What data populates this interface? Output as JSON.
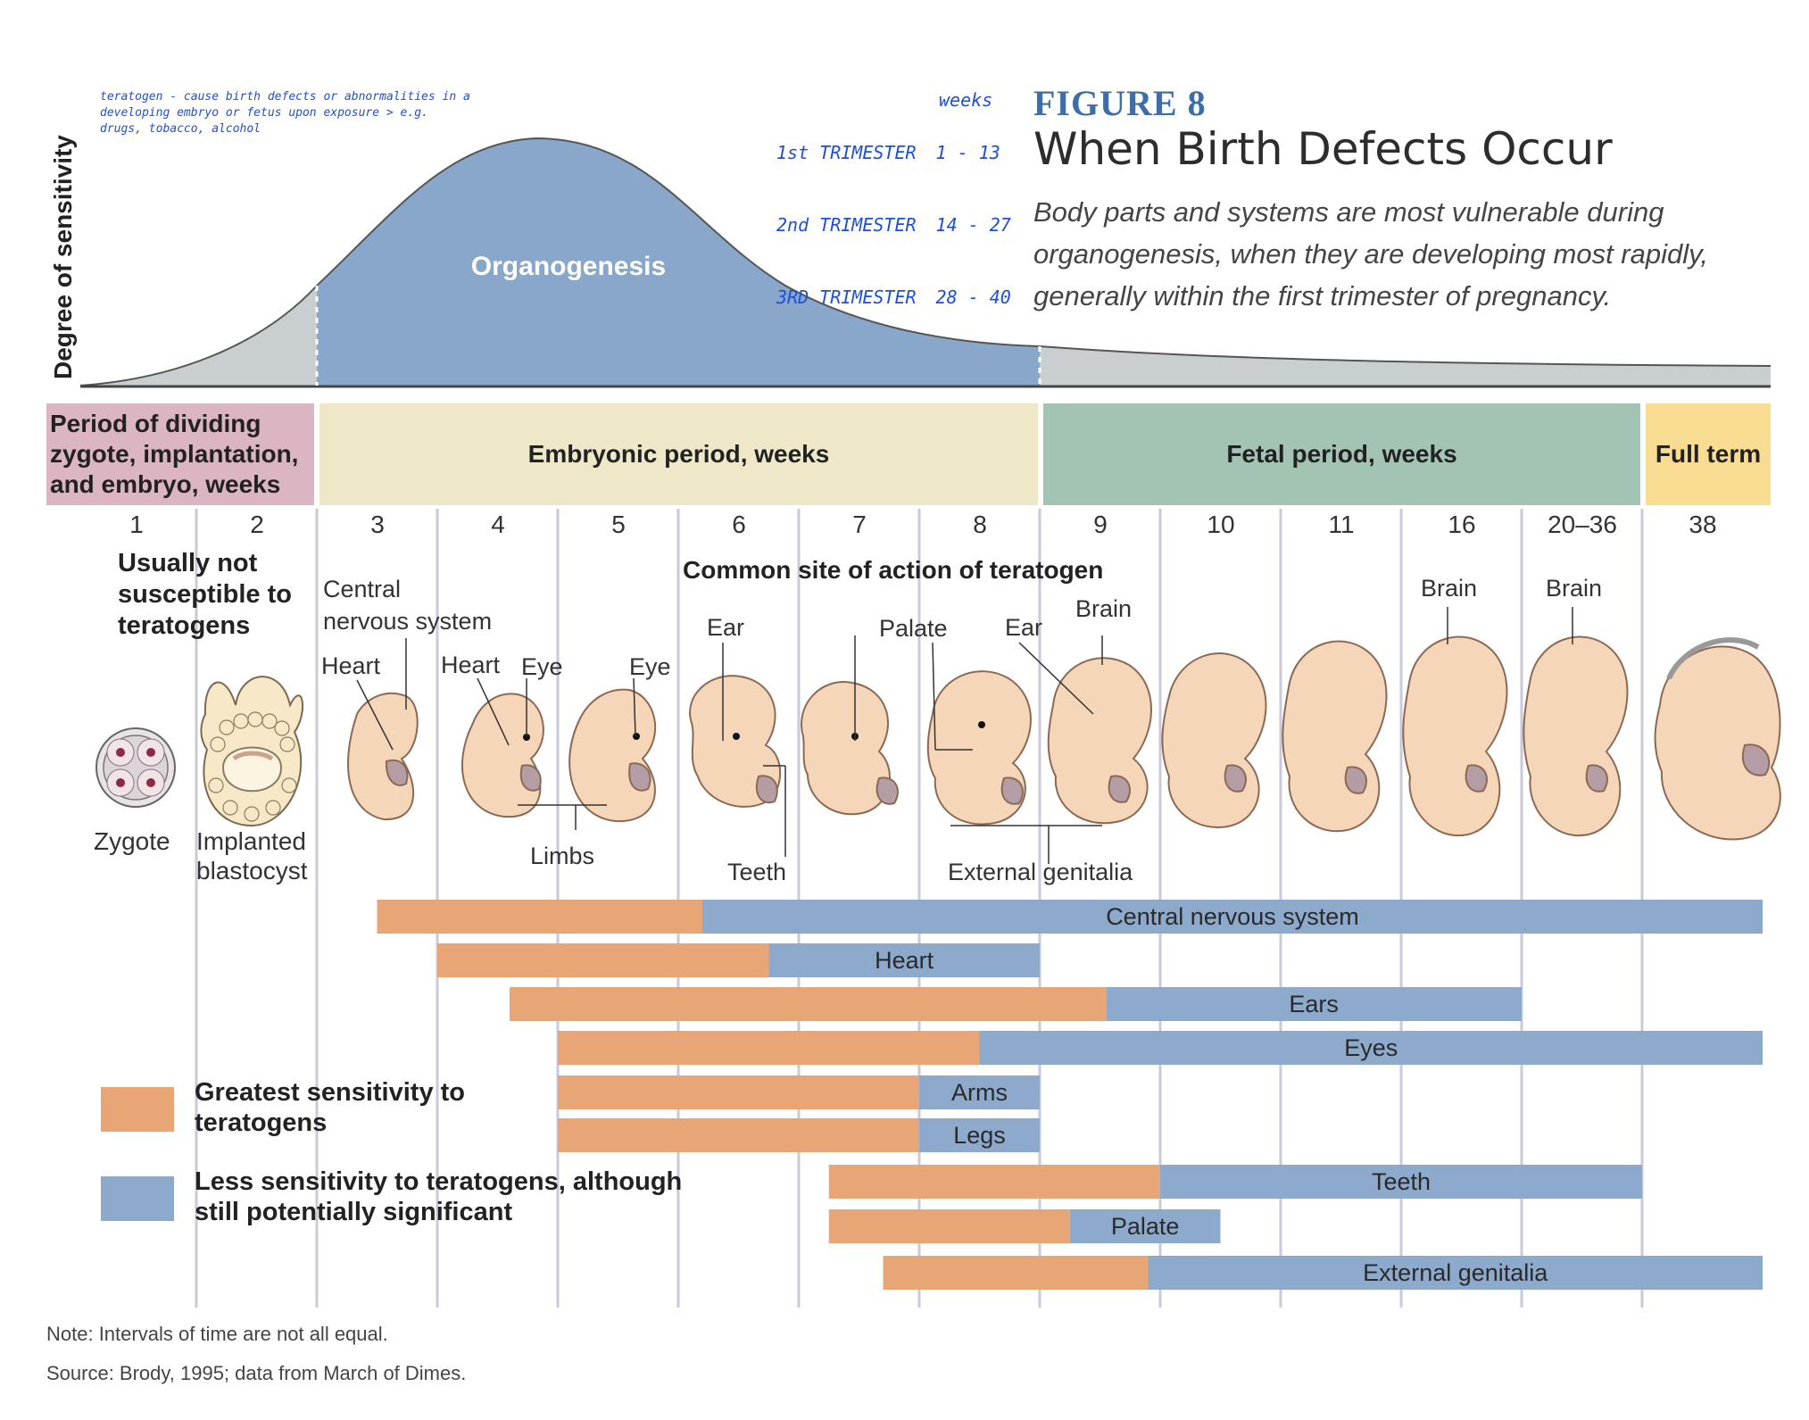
{
  "figure": {
    "label": "FIGURE 8",
    "title": "When Birth Defects Occur",
    "description": "Body parts and systems are most vulnerable during organogenesis, when they are developing most rapidly, generally within the first trimester of pregnancy."
  },
  "curve": {
    "y_axis_label": "Degree of sensitivity",
    "region_label": "Organogenesis"
  },
  "handwritten": {
    "teratogen_note": "teratogen - cause birth defects or abnormalities in a developing embryo or fetus upon exposure > e.g. drugs, tobacco, alcohol",
    "weeks_header": "weeks",
    "trimesters": [
      {
        "label": "1st TRIMESTER",
        "weeks": "1 - 13"
      },
      {
        "label": "2nd TRIMESTER",
        "weeks": "14 - 27"
      },
      {
        "label": "3RD TRIMESTER",
        "weeks": "28 - 40"
      }
    ]
  },
  "periods": [
    {
      "label": "Period of dividing zygote, implantation, and embryo, weeks",
      "color": "#dbb5c1"
    },
    {
      "label": "Embryonic period, weeks",
      "color": "#efe8c8"
    },
    {
      "label": "Fetal period, weeks",
      "color": "#a3c3b3"
    },
    {
      "label": "Full term",
      "color": "#f7dc92"
    }
  ],
  "weeks": [
    "1",
    "2",
    "3",
    "4",
    "5",
    "6",
    "7",
    "8",
    "9",
    "10",
    "11",
    "16",
    "20–36",
    "38"
  ],
  "stage_labels": {
    "not_susceptible": "Usually not susceptible to teratogens",
    "common_site": "Common site of action of teratogen",
    "zygote": "Zygote",
    "blastocyst": "Implanted blastocyst"
  },
  "callouts": [
    "Central nervous system",
    "Heart",
    "Heart",
    "Eye",
    "Eye",
    "Limbs",
    "Ear",
    "Teeth",
    "Palate",
    "Ear",
    "Brain",
    "External genitalia",
    "Brain",
    "Brain"
  ],
  "chart_data": {
    "type": "bar",
    "x_unit": "week column index (1-14 = weeks 1, 2, 3, 4, 5, 6, 7, 8, 9, 10, 11, 16, 20–36, 38)",
    "series": [
      {
        "name": "Greatest sensitivity to teratogens",
        "color": "#e8a676"
      },
      {
        "name": "Less sensitivity to teratogens, although still potentially significant",
        "color": "#8da9cc"
      }
    ],
    "bars": [
      {
        "label": "Central nervous system",
        "start": 3.0,
        "greatest_end": 5.7,
        "end": 14.5
      },
      {
        "label": "Heart",
        "start": 3.5,
        "greatest_end": 6.25,
        "end": 8.5
      },
      {
        "label": "Ears",
        "start": 4.1,
        "greatest_end": 9.05,
        "end": 12.5
      },
      {
        "label": "Eyes",
        "start": 4.5,
        "greatest_end": 8.0,
        "end": 14.5
      },
      {
        "label": "Arms",
        "start": 4.5,
        "greatest_end": 7.5,
        "end": 8.5
      },
      {
        "label": "Legs",
        "start": 4.5,
        "greatest_end": 7.5,
        "end": 8.5
      },
      {
        "label": "Teeth",
        "start": 6.75,
        "greatest_end": 9.5,
        "end": 13.5
      },
      {
        "label": "Palate",
        "start": 6.75,
        "greatest_end": 8.75,
        "end": 10.0
      },
      {
        "label": "External genitalia",
        "start": 7.2,
        "greatest_end": 9.4,
        "end": 14.5
      }
    ]
  },
  "legend": {
    "greatest": "Greatest sensitivity to teratogens",
    "less": "Less sensitivity to teratogens, although still potentially significant"
  },
  "notes": {
    "note": "Note: Intervals of time are not all equal.",
    "source": "Source: Brody, 1995; data from March of Dimes."
  },
  "colors": {
    "curve_gray": "#c9cfd1",
    "curve_blue": "#89a7cb",
    "greatest": "#e8a676",
    "less": "#8da9cc",
    "grid_line": "#c9c9d9",
    "embryo_fill": "#f6d6b8",
    "embryo_stroke": "#8a6a55"
  }
}
